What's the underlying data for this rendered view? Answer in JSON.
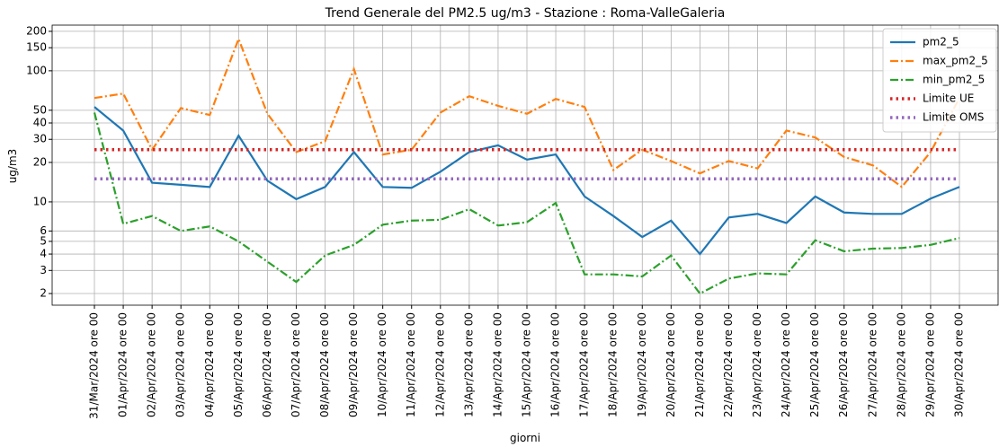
{
  "chart_data": {
    "type": "line",
    "title": "Trend Generale del PM2.5 ug/m3 - Stazione : Roma-ValleGaleria",
    "xlabel": "giorni",
    "ylabel": "ug/m3",
    "categories": [
      "31/Mar/2024 ore 00",
      "01/Apr/2024 ore 00",
      "02/Apr/2024 ore 00",
      "03/Apr/2024 ore 00",
      "04/Apr/2024 ore 00",
      "05/Apr/2024 ore 00",
      "06/Apr/2024 ore 00",
      "07/Apr/2024 ore 00",
      "08/Apr/2024 ore 00",
      "09/Apr/2024 ore 00",
      "10/Apr/2024 ore 00",
      "11/Apr/2024 ore 00",
      "12/Apr/2024 ore 00",
      "13/Apr/2024 ore 00",
      "14/Apr/2024 ore 00",
      "15/Apr/2024 ore 00",
      "16/Apr/2024 ore 00",
      "17/Apr/2024 ore 00",
      "18/Apr/2024 ore 00",
      "19/Apr/2024 ore 00",
      "20/Apr/2024 ore 00",
      "21/Apr/2024 ore 00",
      "22/Apr/2024 ore 00",
      "23/Apr/2024 ore 00",
      "24/Apr/2024 ore 00",
      "25/Apr/2024 ore 00",
      "26/Apr/2024 ore 00",
      "27/Apr/2024 ore 00",
      "28/Apr/2024 ore 00",
      "29/Apr/2024 ore 00",
      "30/Apr/2024 ore 00"
    ],
    "series": [
      {
        "name": "pm2_5",
        "color": "#1f77b4",
        "style": "solid",
        "values": [
          53,
          35,
          14,
          13.5,
          13,
          32,
          14.5,
          10.5,
          13,
          24,
          13,
          12.8,
          17,
          24,
          27,
          21,
          23,
          11,
          7.8,
          5.4,
          7.2,
          4,
          7.6,
          8.1,
          6.9,
          11,
          8.3,
          8.1,
          8.1,
          10.6,
          13
        ]
      },
      {
        "name": "max_pm2_5",
        "color": "#ff7f0e",
        "style": "dashdot",
        "values": [
          62,
          67,
          25,
          52,
          46,
          175,
          47,
          24,
          29,
          103,
          23,
          25,
          48,
          64,
          54,
          47,
          61,
          53,
          17.5,
          25,
          20.5,
          16.5,
          20.5,
          18,
          35,
          31,
          22,
          19,
          13,
          24,
          62
        ]
      },
      {
        "name": "min_pm2_5",
        "color": "#2ca02c",
        "style": "dashdot",
        "values": [
          48,
          6.8,
          7.8,
          6,
          6.5,
          5,
          3.5,
          2.45,
          3.9,
          4.7,
          6.7,
          7.2,
          7.3,
          8.8,
          6.6,
          7,
          9.8,
          2.8,
          2.8,
          2.7,
          3.9,
          2.0,
          2.6,
          2.85,
          2.8,
          5.1,
          4.2,
          4.4,
          4.45,
          4.7,
          5.3
        ]
      },
      {
        "name": "Limite UE",
        "color": "#d62728",
        "style": "dotted",
        "values": [
          25,
          25,
          25,
          25,
          25,
          25,
          25,
          25,
          25,
          25,
          25,
          25,
          25,
          25,
          25,
          25,
          25,
          25,
          25,
          25,
          25,
          25,
          25,
          25,
          25,
          25,
          25,
          25,
          25,
          25,
          25
        ]
      },
      {
        "name": "Limite OMS",
        "color": "#9467bd",
        "style": "dotted",
        "values": [
          15,
          15,
          15,
          15,
          15,
          15,
          15,
          15,
          15,
          15,
          15,
          15,
          15,
          15,
          15,
          15,
          15,
          15,
          15,
          15,
          15,
          15,
          15,
          15,
          15,
          15,
          15,
          15,
          15,
          15,
          15
        ]
      }
    ],
    "ylim": [
      1.63,
      223
    ],
    "yticks": [
      2,
      3,
      4,
      5,
      6,
      10,
      20,
      30,
      40,
      50,
      100,
      150,
      200
    ],
    "log_y": true,
    "grid": true,
    "legend": "upper right"
  }
}
